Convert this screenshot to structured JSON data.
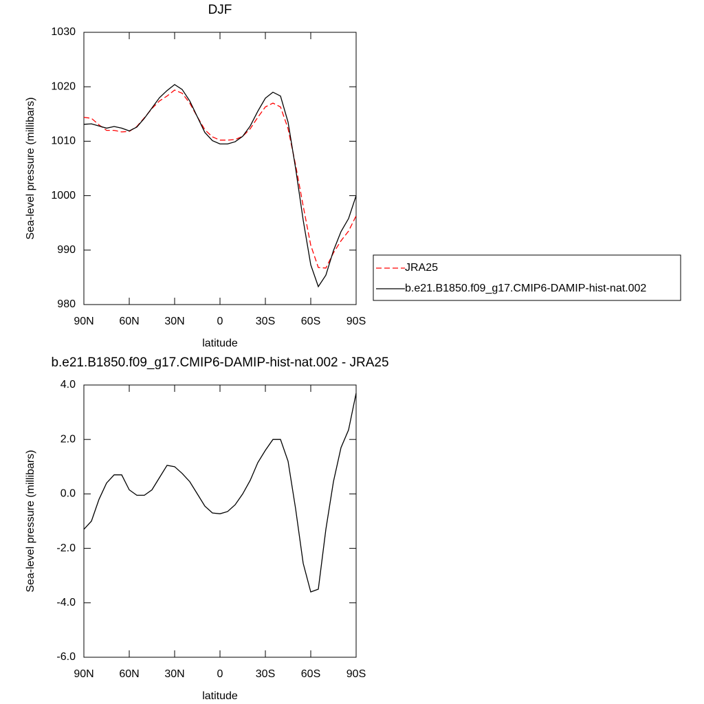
{
  "chart_data": [
    {
      "type": "line",
      "title": "DJF",
      "x_label": "latitude",
      "y_label": "Sea-level pressure (millibars)",
      "x": [
        90,
        85,
        80,
        75,
        70,
        65,
        60,
        55,
        50,
        45,
        40,
        35,
        30,
        25,
        20,
        15,
        10,
        5,
        0,
        -5,
        -10,
        -15,
        -20,
        -25,
        -30,
        -35,
        -40,
        -45,
        -50,
        -55,
        -60,
        -65,
        -70,
        -75,
        -80,
        -85,
        -90
      ],
      "series": [
        {
          "name": "JRA25",
          "color": "#ff0000",
          "dash": true,
          "values": [
            1014.4,
            1014.2,
            1013.0,
            1012.0,
            1012.0,
            1011.7,
            1011.8,
            1012.7,
            1014.3,
            1016.0,
            1017.4,
            1018.3,
            1019.4,
            1018.8,
            1017.0,
            1014.5,
            1012.1,
            1010.8,
            1010.2,
            1010.2,
            1010.3,
            1010.9,
            1012.3,
            1014.4,
            1016.3,
            1017.0,
            1016.3,
            1012.3,
            1005.6,
            998.1,
            990.9,
            986.8,
            986.7,
            989.5,
            991.7,
            993.5,
            996.3
          ]
        },
        {
          "name": "b.e21.B1850.f09_g17.CMIP6-DAMIP-hist-nat.002",
          "color": "#000000",
          "dash": false,
          "values": [
            1013.1,
            1013.2,
            1012.8,
            1012.4,
            1012.7,
            1012.4,
            1011.9,
            1012.6,
            1014.2,
            1016.1,
            1018.0,
            1019.3,
            1020.4,
            1019.5,
            1017.4,
            1014.5,
            1011.6,
            1010.1,
            1009.5,
            1009.5,
            1009.9,
            1010.9,
            1012.8,
            1015.5,
            1017.9,
            1019.0,
            1018.3,
            1013.5,
            1005.0,
            995.5,
            987.3,
            983.3,
            985.4,
            989.9,
            993.4,
            995.8,
            1000.0
          ]
        }
      ],
      "xlim": [
        90,
        -90
      ],
      "xticks": [
        {
          "value": 90,
          "label": "90N"
        },
        {
          "value": 60,
          "label": "60N"
        },
        {
          "value": 30,
          "label": "30N"
        },
        0,
        {
          "value": -30,
          "label": "30S"
        },
        {
          "value": -60,
          "label": "60S"
        },
        {
          "value": -90,
          "label": "90S"
        }
      ],
      "ylim": [
        980,
        1030
      ],
      "yticks": [
        980,
        990,
        1000,
        1010,
        1020,
        1030
      ],
      "legend": "outside right"
    },
    {
      "type": "line",
      "title": "b.e21.B1850.f09_g17.CMIP6-DAMIP-hist-nat.002 - JRA25",
      "x_label": "latitude",
      "y_label": "Sea-level pressure (millibars)",
      "x": [
        90,
        85,
        80,
        75,
        70,
        65,
        60,
        55,
        50,
        45,
        40,
        35,
        30,
        25,
        20,
        15,
        10,
        5,
        0,
        -5,
        -10,
        -15,
        -20,
        -25,
        -30,
        -35,
        -40,
        -45,
        -50,
        -55,
        -60,
        -65,
        -70,
        -75,
        -80,
        -85,
        -90
      ],
      "color": "#000000",
      "values": [
        -1.3,
        -1.0,
        -0.2,
        0.4,
        0.7,
        0.7,
        0.15,
        -0.05,
        -0.05,
        0.15,
        0.6,
        1.05,
        1.0,
        0.75,
        0.45,
        0.0,
        -0.45,
        -0.7,
        -0.73,
        -0.65,
        -0.4,
        0.0,
        0.5,
        1.15,
        1.6,
        2.0,
        2.0,
        1.2,
        -0.55,
        -2.55,
        -3.6,
        -3.5,
        -1.3,
        0.45,
        1.7,
        2.35,
        3.7
      ],
      "xlim": [
        90,
        -90
      ],
      "xticks": [
        {
          "value": 90,
          "label": "90N"
        },
        {
          "value": 60,
          "label": "60N"
        },
        {
          "value": 30,
          "label": "30N"
        },
        0,
        {
          "value": -30,
          "label": "30S"
        },
        {
          "value": -60,
          "label": "60S"
        },
        {
          "value": -90,
          "label": "90S"
        }
      ],
      "ylim": [
        -6,
        4
      ],
      "yticks": [
        {
          "value": -6,
          "label": "-6.0"
        },
        {
          "value": -4,
          "label": "-4.0"
        },
        {
          "value": -2,
          "label": "-2.0"
        },
        {
          "value": 0,
          "label": "0.0"
        },
        {
          "value": 2,
          "label": "2.0"
        },
        {
          "value": 4,
          "label": "4.0"
        }
      ]
    }
  ]
}
